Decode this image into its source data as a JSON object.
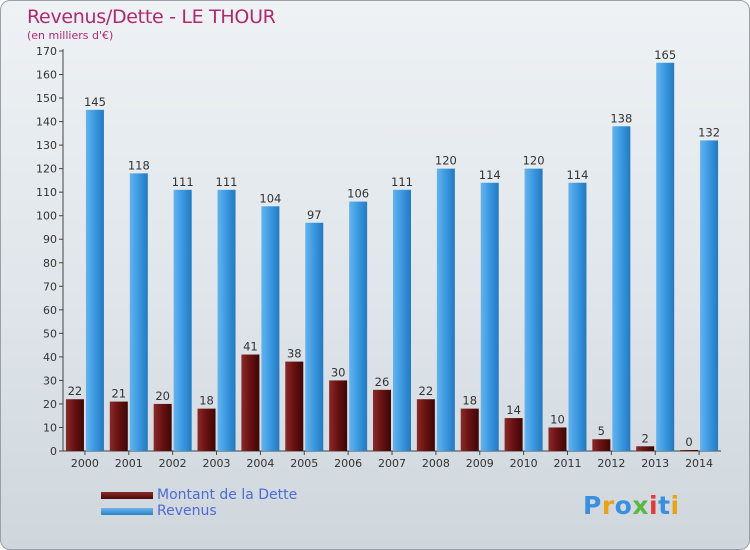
{
  "header": {
    "title": "Revenus/Dette - LE THOUR",
    "subtitle": "(en milliers d'€)"
  },
  "legend": {
    "items": [
      {
        "label": "Montant de la Dette",
        "color": "#6b1212"
      },
      {
        "label": "Revenus",
        "color": "#3a98e0"
      }
    ]
  },
  "logo": {
    "text": "Proxiti",
    "letter_colors": [
      "#3b8fe0",
      "#e8a317",
      "#3b8fe0",
      "#5ab846",
      "#e03a3a",
      "#3b8fe0",
      "#e8a317"
    ]
  },
  "chart_data": {
    "type": "bar",
    "title": "Revenus/Dette - LE THOUR",
    "subtitle": "(en milliers d'€)",
    "categories": [
      "2000",
      "2001",
      "2002",
      "2003",
      "2004",
      "2005",
      "2006",
      "2007",
      "2008",
      "2009",
      "2010",
      "2011",
      "2012",
      "2013",
      "2014"
    ],
    "series": [
      {
        "name": "Montant de la Dette",
        "color": "#6b1212",
        "values": [
          22,
          21,
          20,
          18,
          41,
          38,
          30,
          26,
          22,
          18,
          14,
          10,
          5,
          2,
          0
        ]
      },
      {
        "name": "Revenus",
        "color": "#3a98e0",
        "values": [
          145,
          118,
          111,
          111,
          104,
          97,
          106,
          111,
          120,
          114,
          120,
          114,
          138,
          165,
          132
        ]
      }
    ],
    "ylim": [
      0,
      170
    ],
    "ytick_step": 10,
    "grid": false,
    "legend_position": "bottom-left"
  }
}
